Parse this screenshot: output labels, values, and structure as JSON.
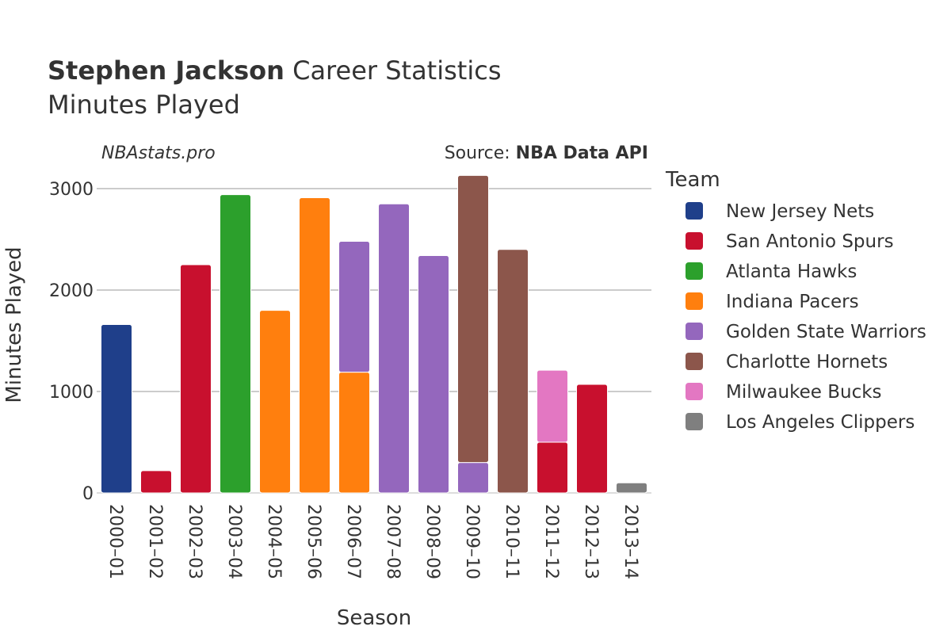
{
  "header": {
    "title_bold": "Stephen Jackson",
    "title_rest": " Career Statistics",
    "subtitle": "Minutes Played"
  },
  "credits": {
    "site": "NBAstats.pro",
    "source_label": "Source: ",
    "source_name": "NBA Data API"
  },
  "chart_data": {
    "type": "bar",
    "stacked": true,
    "xlabel": "Season",
    "ylabel": "Minutes Played",
    "ylim": [
      0,
      3250
    ],
    "yticks": [
      0,
      1000,
      2000,
      3000
    ],
    "grid": true,
    "legend_title": "Team",
    "legend_position": "right",
    "categories": [
      "2000–01",
      "2001–02",
      "2002–03",
      "2003–04",
      "2004–05",
      "2005–06",
      "2006–07",
      "2007–08",
      "2008–09",
      "2009–10",
      "2010–11",
      "2011–12",
      "2012–13",
      "2013–14"
    ],
    "series": [
      {
        "name": "New Jersey Nets",
        "color": "#1f3f8a",
        "values": [
          1660,
          0,
          0,
          0,
          0,
          0,
          0,
          0,
          0,
          0,
          0,
          0,
          0,
          0
        ]
      },
      {
        "name": "San Antonio Spurs",
        "color": "#c8102e",
        "values": [
          0,
          220,
          2250,
          0,
          0,
          0,
          0,
          0,
          0,
          0,
          0,
          500,
          1070,
          0
        ]
      },
      {
        "name": "Atlanta Hawks",
        "color": "#2ca02c",
        "values": [
          0,
          0,
          0,
          2940,
          0,
          0,
          0,
          0,
          0,
          0,
          0,
          0,
          0,
          0
        ]
      },
      {
        "name": "Indiana Pacers",
        "color": "#ff7f0e",
        "values": [
          0,
          0,
          0,
          0,
          1800,
          2910,
          1190,
          0,
          0,
          0,
          0,
          0,
          0,
          0
        ]
      },
      {
        "name": "Golden State Warriors",
        "color": "#9467bd",
        "values": [
          0,
          0,
          0,
          0,
          0,
          0,
          1290,
          2850,
          2340,
          300,
          0,
          0,
          0,
          0
        ]
      },
      {
        "name": "Charlotte Hornets",
        "color": "#8c564b",
        "values": [
          0,
          0,
          0,
          0,
          0,
          0,
          0,
          0,
          0,
          2830,
          2400,
          0,
          0,
          0
        ]
      },
      {
        "name": "Milwaukee Bucks",
        "color": "#e377c2",
        "values": [
          0,
          0,
          0,
          0,
          0,
          0,
          0,
          0,
          0,
          0,
          0,
          710,
          0,
          0
        ]
      },
      {
        "name": "Los Angeles Clippers",
        "color": "#7f7f7f",
        "values": [
          0,
          0,
          0,
          0,
          0,
          0,
          0,
          0,
          0,
          0,
          0,
          0,
          0,
          100
        ]
      }
    ]
  }
}
